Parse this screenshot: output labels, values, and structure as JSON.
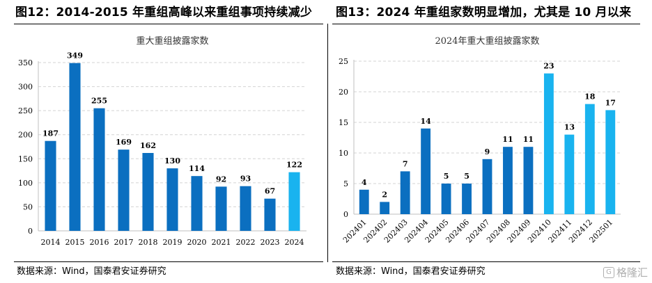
{
  "titles": {
    "left": "图12：2014-2015 年重组高峰以来重组事项持续减少",
    "right": "图13：2024 年重组家数明显增加，尤其是 10 月以来"
  },
  "sources": {
    "left": "数据来源：Wind，国泰君安证券研究",
    "right": "数据来源：Wind，国泰君安证券研究"
  },
  "watermark": {
    "icon_glyph": "G",
    "text": "格隆汇"
  },
  "colors": {
    "bar_dark": "#0b6fc0",
    "bar_highlight": "#19b3ef",
    "grid": "#d3d3d3"
  },
  "chart_data": [
    {
      "type": "bar",
      "title": "重大重组披露家数",
      "categories": [
        "2014",
        "2015",
        "2016",
        "2017",
        "2018",
        "2019",
        "2020",
        "2021",
        "2022",
        "2023",
        "2024"
      ],
      "values": [
        187,
        349,
        255,
        169,
        162,
        130,
        114,
        92,
        93,
        67,
        122
      ],
      "highlight": [
        "2024"
      ],
      "ylim": [
        0,
        350
      ],
      "yticks": [
        0,
        50,
        100,
        150,
        200,
        250,
        300,
        350
      ],
      "grid": true,
      "data_labels": true,
      "xlabel": "",
      "ylabel": ""
    },
    {
      "type": "bar",
      "title": "2024年重大重组披露家数",
      "categories": [
        "202401",
        "202402",
        "202403",
        "202404",
        "202405",
        "202406",
        "202407",
        "202408",
        "202409",
        "202410",
        "202411",
        "202412",
        "202501"
      ],
      "values": [
        4,
        2,
        7,
        14,
        5,
        5,
        9,
        11,
        11,
        23,
        13,
        18,
        17
      ],
      "highlight": [
        "202410",
        "202411",
        "202412",
        "202501"
      ],
      "ylim": [
        0,
        25
      ],
      "yticks": [
        0,
        5,
        10,
        15,
        20,
        25
      ],
      "grid": true,
      "data_labels": true,
      "xlabel": "",
      "ylabel": ""
    }
  ]
}
